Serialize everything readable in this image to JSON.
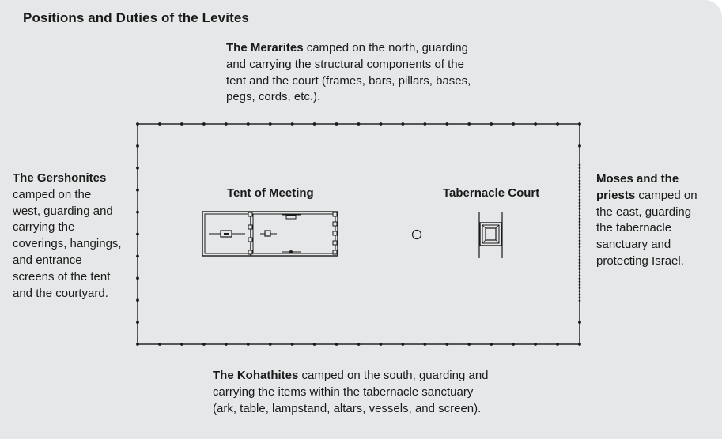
{
  "title": "Positions and Duties of the Levites",
  "north": {
    "bold": "The Merarites",
    "lines": [
      " camped on the north, guarding",
      "and carrying the structural components of the",
      "tent and the court (frames, bars, pillars, bases,",
      "pegs, cords, etc.)."
    ]
  },
  "west": {
    "bold": "The Gershonites",
    "lines": [
      "camped on the",
      "west, guarding and",
      "carrying the",
      "coverings, hangings,",
      "and entrance",
      "screens of the tent",
      "and the courtyard."
    ]
  },
  "east": {
    "bold1": "Moses and the",
    "bold2": "priests",
    "lines": [
      " camped on",
      "the east, guarding",
      "the tabernacle",
      "sanctuary and",
      "protecting Israel."
    ]
  },
  "south": {
    "bold": "The Kohathites",
    "lines": [
      " camped on the south, guarding and",
      "carrying the items within the tabernacle sanctuary",
      "(ark, table, lampstand, altars, vessels, and screen)."
    ]
  },
  "labels": {
    "tent": "Tent of Meeting",
    "court": "Tabernacle Court"
  },
  "colors": {
    "background": "#e6e7e8",
    "ink": "#1a1a1a"
  }
}
